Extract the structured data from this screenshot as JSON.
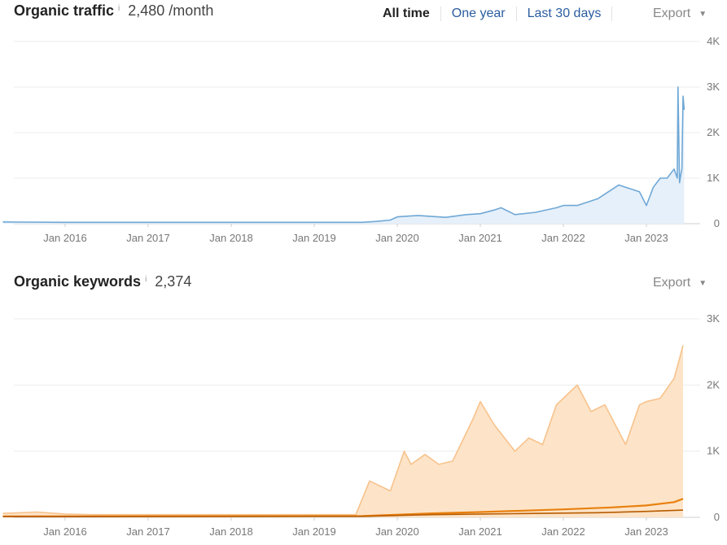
{
  "traffic": {
    "title": "Organic traffic",
    "info": "i",
    "value": "2,480 /month",
    "ranges": [
      "All time",
      "One year",
      "Last 30 days"
    ],
    "active_range": "All time",
    "export": "Export",
    "caret": "▼"
  },
  "keywords": {
    "title": "Organic keywords",
    "info": "i",
    "value": "2,374",
    "export": "Export",
    "caret": "▼"
  },
  "chart_data": [
    {
      "type": "area",
      "x_tick_labels": [
        "Jan 2016",
        "Jan 2017",
        "Jan 2018",
        "Jan 2019",
        "Jan 2020",
        "Jan 2021",
        "Jan 2022",
        "Jan 2023"
      ],
      "y_tick_labels": [
        "4K",
        "3K",
        "2K",
        "1K",
        "0"
      ],
      "ylim": [
        0,
        4000
      ],
      "grid": true,
      "colors": {
        "line": "#6fa8d6",
        "fill": "#e6f0fa"
      },
      "series": [
        {
          "x": [
            "2015-04",
            "2015-06",
            "2016-01",
            "2017-01",
            "2018-01",
            "2019-01",
            "2019-08",
            "2019-10",
            "2019-12",
            "2020-01",
            "2020-04",
            "2020-08",
            "2020-11",
            "2021-01",
            "2021-03",
            "2021-04",
            "2021-06",
            "2021-09",
            "2021-12",
            "2022-01",
            "2022-03",
            "2022-06",
            "2022-09",
            "2022-10",
            "2022-12",
            "2023-01",
            "2023-02",
            "2023-03",
            "2023-04",
            "2023-05",
            "2023-05-15",
            "2023-05-18",
            "2023-05-25",
            "2023-06",
            "2023-06-05",
            "2023-06-10",
            "2023-06-15"
          ],
          "values": [
            40,
            35,
            30,
            30,
            30,
            30,
            30,
            50,
            80,
            150,
            180,
            140,
            200,
            220,
            300,
            350,
            200,
            250,
            350,
            400,
            400,
            550,
            850,
            800,
            700,
            400,
            800,
            1000,
            1000,
            1200,
            1000,
            3000,
            900,
            1100,
            1200,
            2800,
            2500
          ]
        }
      ]
    },
    {
      "type": "area",
      "x_tick_labels": [
        "Jan 2016",
        "Jan 2017",
        "Jan 2018",
        "Jan 2019",
        "Jan 2020",
        "Jan 2021",
        "Jan 2022",
        "Jan 2023"
      ],
      "y_tick_labels": [
        "3K",
        "2K",
        "1K",
        "0"
      ],
      "ylim": [
        0,
        3000
      ],
      "grid": true,
      "colors": {
        "main_line": "#f7c28c",
        "main_fill": "#fde4c8",
        "sub_line": "#e8800f",
        "sub_line_2": "#b85c00"
      },
      "series": [
        {
          "x": [
            "2015-04",
            "2015-09",
            "2016-01",
            "2016-05",
            "2019-07",
            "2019-09",
            "2019-12",
            "2020-02",
            "2020-03",
            "2020-05",
            "2020-07",
            "2020-09",
            "2020-12",
            "2021-01",
            "2021-03",
            "2021-06",
            "2021-08",
            "2021-10",
            "2021-12",
            "2022-02",
            "2022-03",
            "2022-05",
            "2022-07",
            "2022-09",
            "2022-10",
            "2022-12",
            "2023-01",
            "2023-03",
            "2023-05",
            "2023-05-25",
            "2023-06-10"
          ],
          "values": [
            60,
            80,
            50,
            40,
            40,
            550,
            400,
            1000,
            800,
            950,
            800,
            850,
            1500,
            1750,
            1400,
            1000,
            1200,
            1100,
            1700,
            1900,
            2000,
            1600,
            1700,
            1300,
            1100,
            1700,
            1750,
            1800,
            2100,
            2400,
            2600
          ]
        },
        {
          "x": [
            "2015-04",
            "2019-08",
            "2020-06",
            "2021-01",
            "2022-01",
            "2022-08",
            "2023-01",
            "2023-05",
            "2023-06-10"
          ],
          "values": [
            15,
            20,
            60,
            80,
            120,
            150,
            180,
            230,
            280
          ]
        },
        {
          "x": [
            "2015-04",
            "2019-08",
            "2020-06",
            "2021-06",
            "2022-06",
            "2023-01",
            "2023-06-10"
          ],
          "values": [
            10,
            15,
            40,
            55,
            70,
            90,
            110
          ]
        }
      ]
    }
  ]
}
